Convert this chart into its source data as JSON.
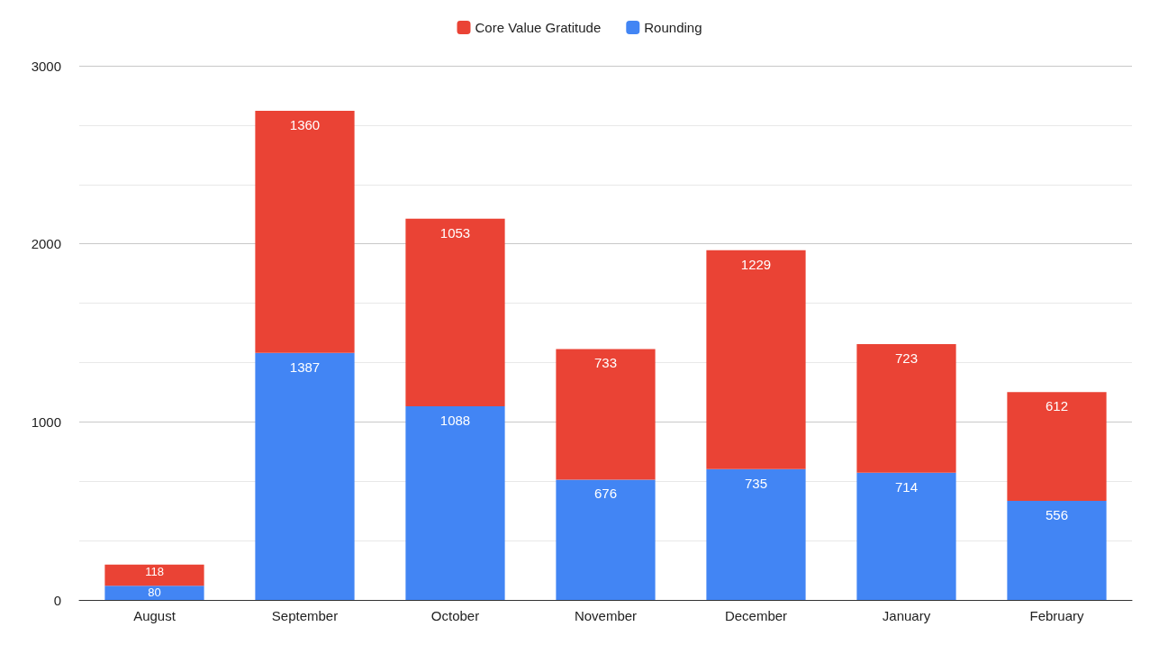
{
  "chart_data": {
    "type": "bar",
    "stacked": true,
    "categories": [
      "August",
      "September",
      "October",
      "November",
      "December",
      "January",
      "February"
    ],
    "series": [
      {
        "name": "Rounding",
        "color": "#4285f4",
        "values": [
          80,
          1387,
          1088,
          676,
          735,
          714,
          556
        ]
      },
      {
        "name": "Core Value Gratitude",
        "color": "#ea4335",
        "values": [
          118,
          1360,
          1053,
          733,
          1229,
          723,
          612
        ]
      }
    ],
    "ylim": [
      0,
      3000
    ],
    "yticks": [
      0,
      1000,
      2000,
      3000
    ],
    "grid": "y",
    "legend": "top",
    "data_labels": true
  }
}
